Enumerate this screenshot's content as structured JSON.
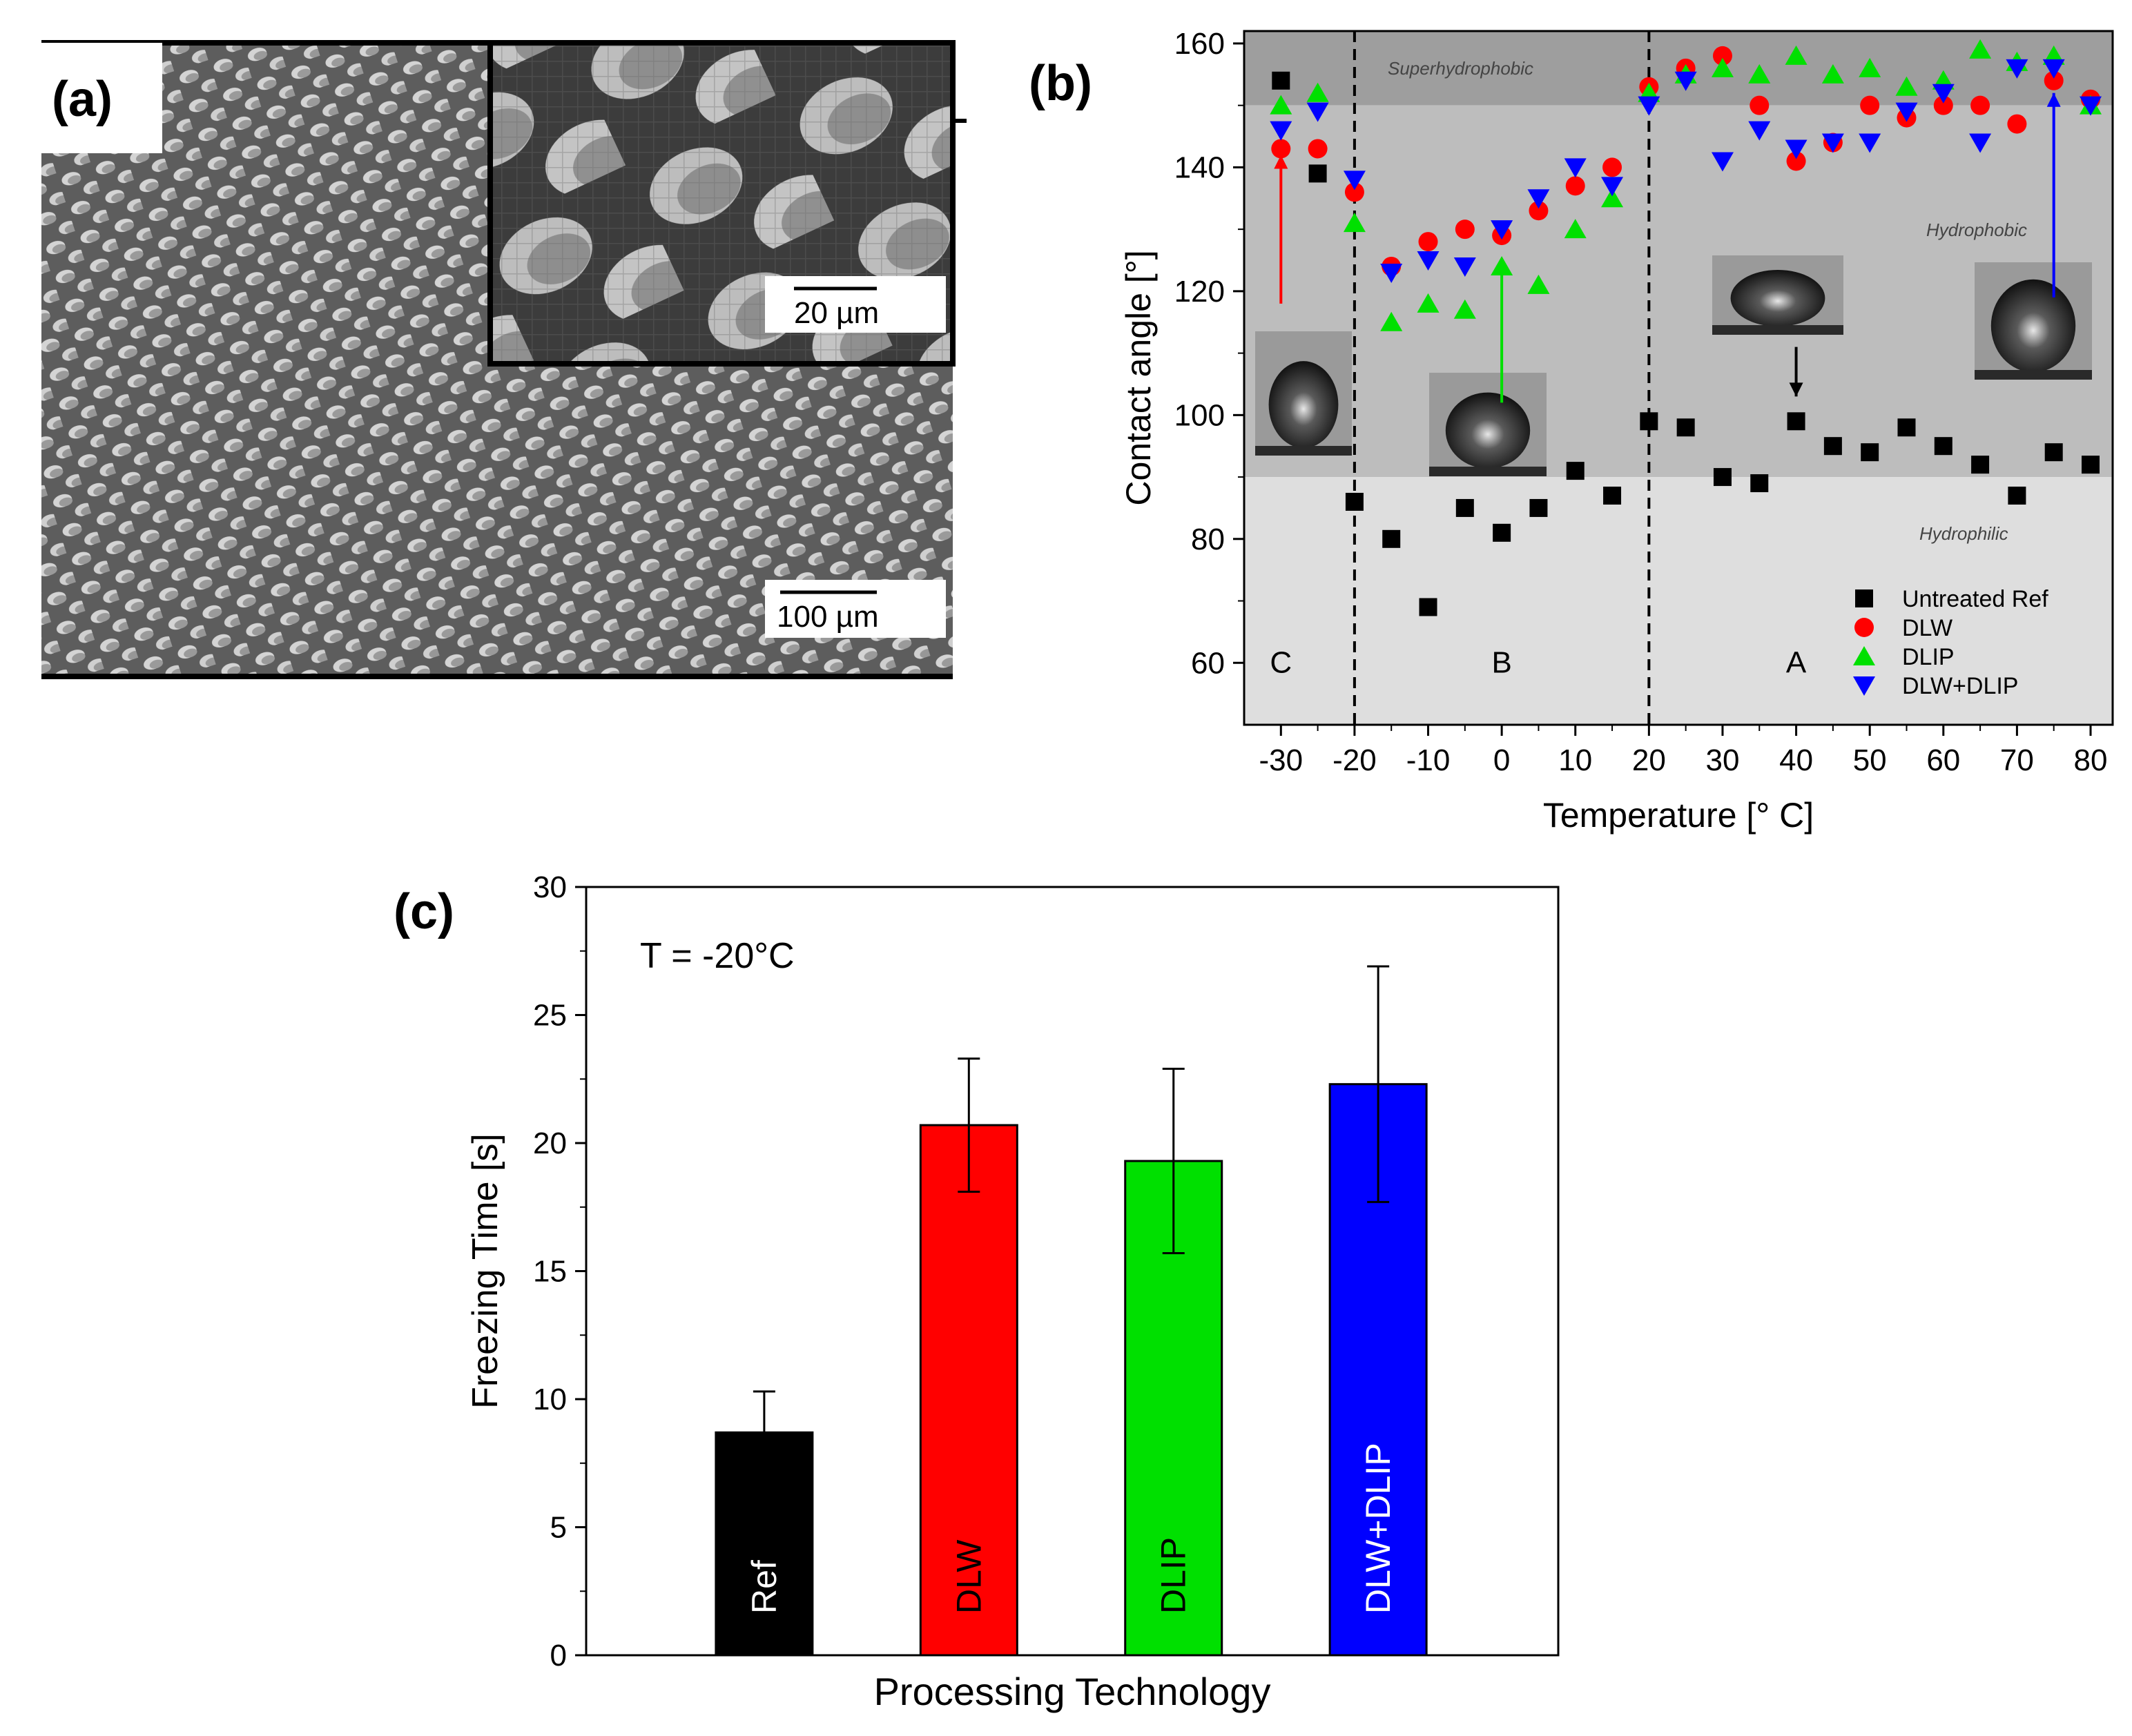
{
  "figure": {
    "panel_a": {
      "label": "(a)",
      "main_scale_bar": "100 µm",
      "inset_scale_bar": "20 µm"
    },
    "panel_b_label": "(b)",
    "panel_c_label": "(c)"
  },
  "colors": {
    "untreated": "#000000",
    "dlw": "#ff0000",
    "dlip": "#00e000",
    "dlw_dlip": "#0000ff",
    "region_super": "#9e9e9e",
    "region_hydrophobic": "#bdbdbd",
    "region_hydrophilic": "#dedede"
  },
  "chart_data": [
    {
      "type": "scatter",
      "xlabel": "Temperature [° C]",
      "ylabel": "Contact angle [°]",
      "xlim": [
        -35,
        83
      ],
      "ylim": [
        50,
        162
      ],
      "xticks": [
        -30,
        -20,
        -10,
        0,
        10,
        20,
        30,
        40,
        50,
        60,
        70,
        80
      ],
      "yticks": [
        60,
        80,
        100,
        120,
        140,
        160
      ],
      "regions": [
        {
          "label": "Superhydrophobic",
          "from": 150,
          "to": 162
        },
        {
          "label": "Hydrophobic",
          "from": 90,
          "to": 150
        },
        {
          "label": "Hydrophilic",
          "from": 50,
          "to": 90
        }
      ],
      "zone_dividers": [
        -20,
        20
      ],
      "zones": [
        {
          "label": "C",
          "x": -30
        },
        {
          "label": "B",
          "x": 0
        },
        {
          "label": "A",
          "x": 40
        }
      ],
      "legend_position": "bottom-right",
      "series": [
        {
          "name": "Untreated Ref",
          "marker": "square",
          "color_key": "untreated",
          "x": [
            -30,
            -25,
            -20,
            -15,
            -10,
            -5,
            0,
            5,
            10,
            15,
            20,
            25,
            30,
            35,
            40,
            45,
            50,
            55,
            60,
            65,
            70,
            75,
            80
          ],
          "y": [
            154,
            139,
            86,
            80,
            69,
            85,
            81,
            85,
            91,
            87,
            99,
            98,
            90,
            89,
            99,
            95,
            94,
            98,
            95,
            92,
            87,
            94,
            92
          ]
        },
        {
          "name": "DLW",
          "marker": "circle",
          "color_key": "dlw",
          "x": [
            -30,
            -25,
            -20,
            -15,
            -10,
            -5,
            0,
            5,
            10,
            15,
            20,
            25,
            30,
            35,
            40,
            45,
            50,
            55,
            60,
            65,
            70,
            75,
            80
          ],
          "y": [
            143,
            143,
            136,
            124,
            128,
            130,
            129,
            133,
            137,
            140,
            153,
            156,
            158,
            150,
            141,
            144,
            150,
            148,
            150,
            150,
            147,
            154,
            151
          ]
        },
        {
          "name": "DLIP",
          "marker": "triangle-up",
          "color_key": "dlip",
          "x": [
            -30,
            -25,
            -20,
            -15,
            -10,
            -5,
            0,
            5,
            10,
            15,
            20,
            25,
            30,
            35,
            40,
            45,
            50,
            55,
            60,
            65,
            70,
            75,
            80
          ],
          "y": [
            150,
            152,
            131,
            115,
            118,
            117,
            124,
            121,
            130,
            135,
            152,
            155,
            156,
            155,
            158,
            155,
            156,
            153,
            154,
            159,
            157,
            158,
            150
          ]
        },
        {
          "name": "DLW+DLIP",
          "marker": "triangle-down",
          "color_key": "dlw_dlip",
          "x": [
            -30,
            -25,
            -20,
            -15,
            -10,
            -5,
            0,
            5,
            10,
            15,
            20,
            25,
            30,
            35,
            40,
            45,
            50,
            55,
            60,
            65,
            70,
            75,
            80
          ],
          "y": [
            146,
            149,
            138,
            123,
            125,
            124,
            130,
            135,
            140,
            137,
            150,
            154,
            141,
            146,
            143,
            144,
            144,
            149,
            152,
            144,
            156,
            156,
            150
          ]
        }
      ]
    },
    {
      "type": "bar",
      "title": "T = -20°C",
      "xlabel": "Processing Technology",
      "ylabel": "Freezing Time [s]",
      "ylim": [
        0,
        30
      ],
      "yticks": [
        0,
        5,
        10,
        15,
        20,
        25,
        30
      ],
      "categories": [
        "Ref",
        "DLW",
        "DLIP",
        "DLW+DLIP"
      ],
      "values": [
        8.7,
        20.7,
        19.3,
        22.3
      ],
      "errors": [
        1.6,
        2.6,
        3.6,
        4.6
      ],
      "bar_color_keys": [
        "untreated",
        "dlw",
        "dlip",
        "dlw_dlip"
      ]
    }
  ]
}
